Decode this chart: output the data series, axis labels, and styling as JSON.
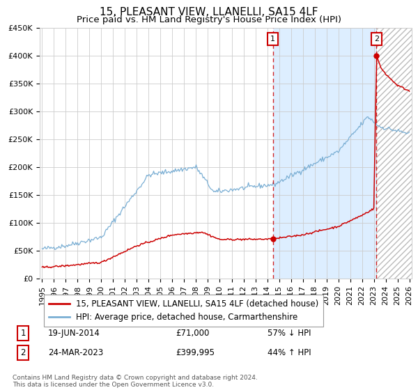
{
  "title": "15, PLEASANT VIEW, LLANELLI, SA15 4LF",
  "subtitle": "Price paid vs. HM Land Registry's House Price Index (HPI)",
  "ylim": [
    0,
    450000
  ],
  "yticks": [
    0,
    50000,
    100000,
    150000,
    200000,
    250000,
    300000,
    350000,
    400000,
    450000
  ],
  "ytick_labels": [
    "£0",
    "£50K",
    "£100K",
    "£150K",
    "£200K",
    "£250K",
    "£300K",
    "£350K",
    "£400K",
    "£450K"
  ],
  "x_start_year": 1995,
  "x_end_year": 2026,
  "hpi_color": "#7bafd4",
  "price_color": "#cc0000",
  "marker_color": "#cc0000",
  "sale1_date": 2014.47,
  "sale1_price": 71000,
  "sale2_date": 2023.23,
  "sale2_price": 399995,
  "legend_label_price": "15, PLEASANT VIEW, LLANELLI, SA15 4LF (detached house)",
  "legend_label_hpi": "HPI: Average price, detached house, Carmarthenshire",
  "annotation1_date": "19-JUN-2014",
  "annotation1_price": "£71,000",
  "annotation1_hpi": "57% ↓ HPI",
  "annotation2_date": "24-MAR-2023",
  "annotation2_price": "£399,995",
  "annotation2_hpi": "44% ↑ HPI",
  "footer": "Contains HM Land Registry data © Crown copyright and database right 2024.\nThis data is licensed under the Open Government Licence v3.0.",
  "bg_between_color": "#ddeeff",
  "grid_color": "#cccccc",
  "title_fontsize": 11,
  "subtitle_fontsize": 9.5,
  "tick_fontsize": 8,
  "legend_fontsize": 8.5,
  "annotation_fontsize": 8.5
}
